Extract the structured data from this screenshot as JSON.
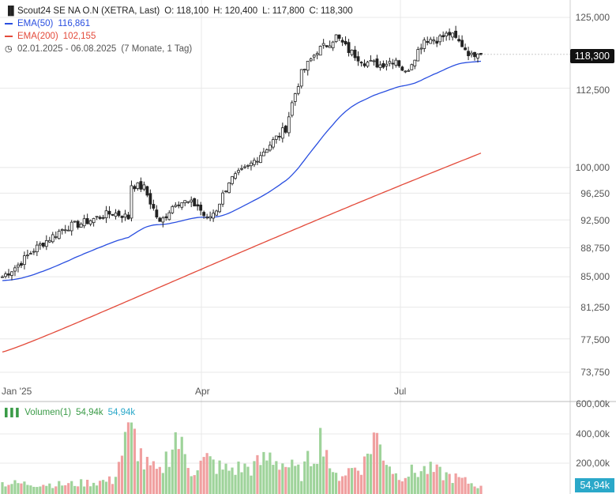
{
  "header": {
    "title": "Scout24 SE NA O.N (XETRA, Last)",
    "o_label": "O:",
    "o_value": "118,100",
    "h_label": "H:",
    "h_value": "120,400",
    "l_label": "L:",
    "l_value": "117,800",
    "c_label": "C:",
    "c_value": "118,300",
    "ema50_label": "EMA(50)",
    "ema50_value": "116,861",
    "ema200_label": "EMA(200)",
    "ema200_value": "102,155",
    "range": "02.01.2025 - 06.08.2025",
    "period": "(7 Monate, 1 Tag)"
  },
  "volume_legend": {
    "label": "Volumen(1)",
    "value1": "54,94k",
    "value2": "54,94k"
  },
  "colors": {
    "up": "#3a9b47",
    "down": "#e04b4b",
    "ema50": "#2a4fe0",
    "ema200": "#e34a3a",
    "vol_up": "#9ed39a",
    "vol_down": "#f0a0a0",
    "grid": "#e8e8e8"
  },
  "last_price_tag": "118,300",
  "volume_tag": "54,94k",
  "chart_data": {
    "type": "candlestick",
    "title": "Scout24 SE NA O.N (XETRA, Last)",
    "y_axis": {
      "ticks": [
        "125,000",
        "112,500",
        "100,000",
        "96,250",
        "92,500",
        "88,750",
        "85,000",
        "81,250",
        "77,500",
        "73,750"
      ],
      "tick_values": [
        125,
        112.5,
        100,
        96.25,
        92.5,
        88.75,
        85,
        81.25,
        77.5,
        73.75
      ],
      "scale": "log"
    },
    "x_axis": {
      "ticks": [
        "Jan '25",
        "Apr",
        "Jul"
      ]
    },
    "volume_axis": {
      "ticks": [
        "600,00k",
        "400,00k",
        "200,00k"
      ],
      "tick_values": [
        600,
        400,
        200
      ]
    },
    "series": [
      {
        "name": "EMA(50)",
        "last": 116.861
      },
      {
        "name": "EMA(200)",
        "last": 102.155
      }
    ],
    "price_keypoints": [
      [
        0,
        85
      ],
      [
        5,
        86.5
      ],
      [
        10,
        88.5
      ],
      [
        15,
        90
      ],
      [
        20,
        91.5
      ],
      [
        25,
        92
      ],
      [
        30,
        92.8
      ],
      [
        35,
        93.5
      ],
      [
        38,
        93.2
      ],
      [
        40,
        92.8
      ],
      [
        41,
        97.5
      ],
      [
        45,
        97
      ],
      [
        48,
        94
      ],
      [
        50,
        92
      ],
      [
        55,
        95
      ],
      [
        58,
        95
      ],
      [
        62,
        94.5
      ],
      [
        65,
        92.5
      ],
      [
        68,
        94
      ],
      [
        72,
        98
      ],
      [
        78,
        100
      ],
      [
        84,
        103
      ],
      [
        90,
        106
      ],
      [
        92,
        110
      ],
      [
        95,
        115
      ],
      [
        100,
        119
      ],
      [
        103,
        120
      ],
      [
        106,
        121.5
      ],
      [
        110,
        119
      ],
      [
        115,
        117
      ],
      [
        120,
        116.5
      ],
      [
        125,
        117.5
      ],
      [
        128,
        115
      ],
      [
        131,
        118
      ],
      [
        134,
        121
      ],
      [
        138,
        121
      ],
      [
        142,
        122
      ],
      [
        146,
        120
      ],
      [
        149,
        118
      ],
      [
        151,
        119
      ],
      [
        152,
        118.3
      ]
    ],
    "ema50_range": [
      84.5,
      116.861
    ],
    "ema200_range": [
      76,
      102.155
    ],
    "sessions": 153,
    "volume_k_keypoints": [
      [
        0,
        80
      ],
      [
        20,
        70
      ],
      [
        35,
        100
      ],
      [
        40,
        440
      ],
      [
        42,
        420
      ],
      [
        45,
        220
      ],
      [
        50,
        150
      ],
      [
        55,
        430
      ],
      [
        60,
        180
      ],
      [
        65,
        250
      ],
      [
        70,
        180
      ],
      [
        80,
        200
      ],
      [
        85,
        280
      ],
      [
        95,
        150
      ],
      [
        102,
        440
      ],
      [
        105,
        120
      ],
      [
        115,
        230
      ],
      [
        118,
        440
      ],
      [
        125,
        140
      ],
      [
        135,
        180
      ],
      [
        145,
        110
      ],
      [
        152,
        54.94
      ]
    ]
  }
}
